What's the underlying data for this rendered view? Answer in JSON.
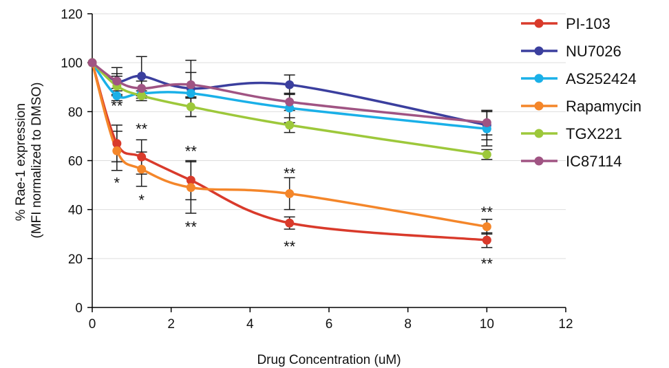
{
  "chart_data": {
    "type": "line",
    "title": "",
    "xlabel": "Drug Concentration (uM)",
    "ylabel_lines": [
      "% Rae-1 expression",
      "(MFI normalized to DMSO)"
    ],
    "xlim": [
      0,
      12
    ],
    "ylim": [
      0,
      120
    ],
    "x_ticks": [
      0,
      2,
      4,
      6,
      8,
      10,
      12
    ],
    "y_ticks": [
      0,
      20,
      40,
      60,
      80,
      100,
      120
    ],
    "grid": "horizontal",
    "legend_position": "right",
    "smooth": true,
    "x": [
      0,
      0.625,
      1.25,
      2.5,
      5,
      10
    ],
    "series": [
      {
        "name": "PI-103",
        "color": "#d93a2b",
        "values": [
          100,
          67,
          61.5,
          52,
          34.5,
          27.5
        ],
        "errors": [
          0,
          7.5,
          7,
          8,
          2.5,
          3
        ]
      },
      {
        "name": "NU7026",
        "color": "#3b3f9e",
        "values": [
          100,
          92.5,
          94.5,
          89.5,
          91,
          74.5
        ],
        "errors": [
          0,
          5.5,
          8,
          11.5,
          4,
          6
        ]
      },
      {
        "name": "AS252424",
        "color": "#1ab0e8",
        "values": [
          100,
          86.5,
          87.5,
          87.5,
          81.5,
          73
        ],
        "errors": [
          0,
          2,
          2,
          2,
          6,
          7
        ]
      },
      {
        "name": "Rapamycin",
        "color": "#f4862a",
        "values": [
          100,
          64,
          56.5,
          49,
          46.5,
          33
        ],
        "errors": [
          0,
          8,
          7,
          10.5,
          6.5,
          3
        ]
      },
      {
        "name": "TGX221",
        "color": "#9dc83b",
        "values": [
          100,
          90.5,
          86.5,
          82,
          74.5,
          62.5
        ],
        "errors": [
          0,
          4,
          2,
          4,
          3,
          2
        ]
      },
      {
        "name": "IC87114",
        "color": "#a05483",
        "values": [
          100,
          92.5,
          89.5,
          91,
          84,
          75.5
        ],
        "errors": [
          0,
          3,
          3,
          5,
          3.5,
          5
        ]
      }
    ],
    "annotations": [
      {
        "text": "**",
        "x": 0.625,
        "y": 82.5
      },
      {
        "text": "*",
        "x": 0.625,
        "y": 51
      },
      {
        "text": "**",
        "x": 1.25,
        "y": 73
      },
      {
        "text": "*",
        "x": 1.25,
        "y": 44
      },
      {
        "text": "**",
        "x": 2.5,
        "y": 64
      },
      {
        "text": "**",
        "x": 2.5,
        "y": 33
      },
      {
        "text": "**",
        "x": 5,
        "y": 55
      },
      {
        "text": "**",
        "x": 5,
        "y": 25
      },
      {
        "text": "**",
        "x": 10,
        "y": 39
      },
      {
        "text": "**",
        "x": 10,
        "y": 18
      }
    ]
  }
}
